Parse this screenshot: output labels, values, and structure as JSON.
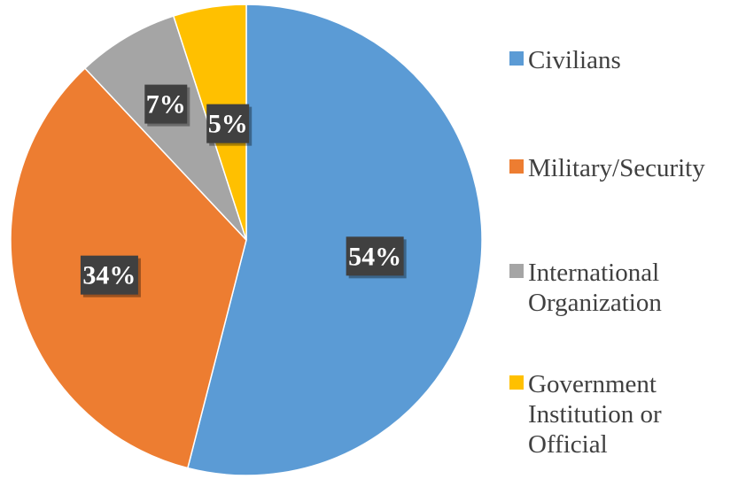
{
  "chart_data": {
    "type": "pie",
    "start_angle_deg": 0,
    "direction": "clockwise",
    "slices": [
      {
        "label": "Civilians",
        "value": 54,
        "display": "54%",
        "color": "#5B9BD5",
        "legend_lines": [
          "Civilians"
        ]
      },
      {
        "label": "Military/Security",
        "value": 34,
        "display": "34%",
        "color": "#ED7D31",
        "legend_lines": [
          "Military/Security"
        ]
      },
      {
        "label": "International Organization",
        "value": 7,
        "display": "7%",
        "color": "#A5A5A5",
        "legend_lines": [
          "International",
          "Organization"
        ]
      },
      {
        "label": "Government Institution or Official",
        "value": 5,
        "display": "5%",
        "color": "#FFC000",
        "legend_lines": [
          "Government",
          "Institution or",
          "Official"
        ]
      }
    ],
    "legend_position": "right",
    "data_labels": "inside"
  }
}
